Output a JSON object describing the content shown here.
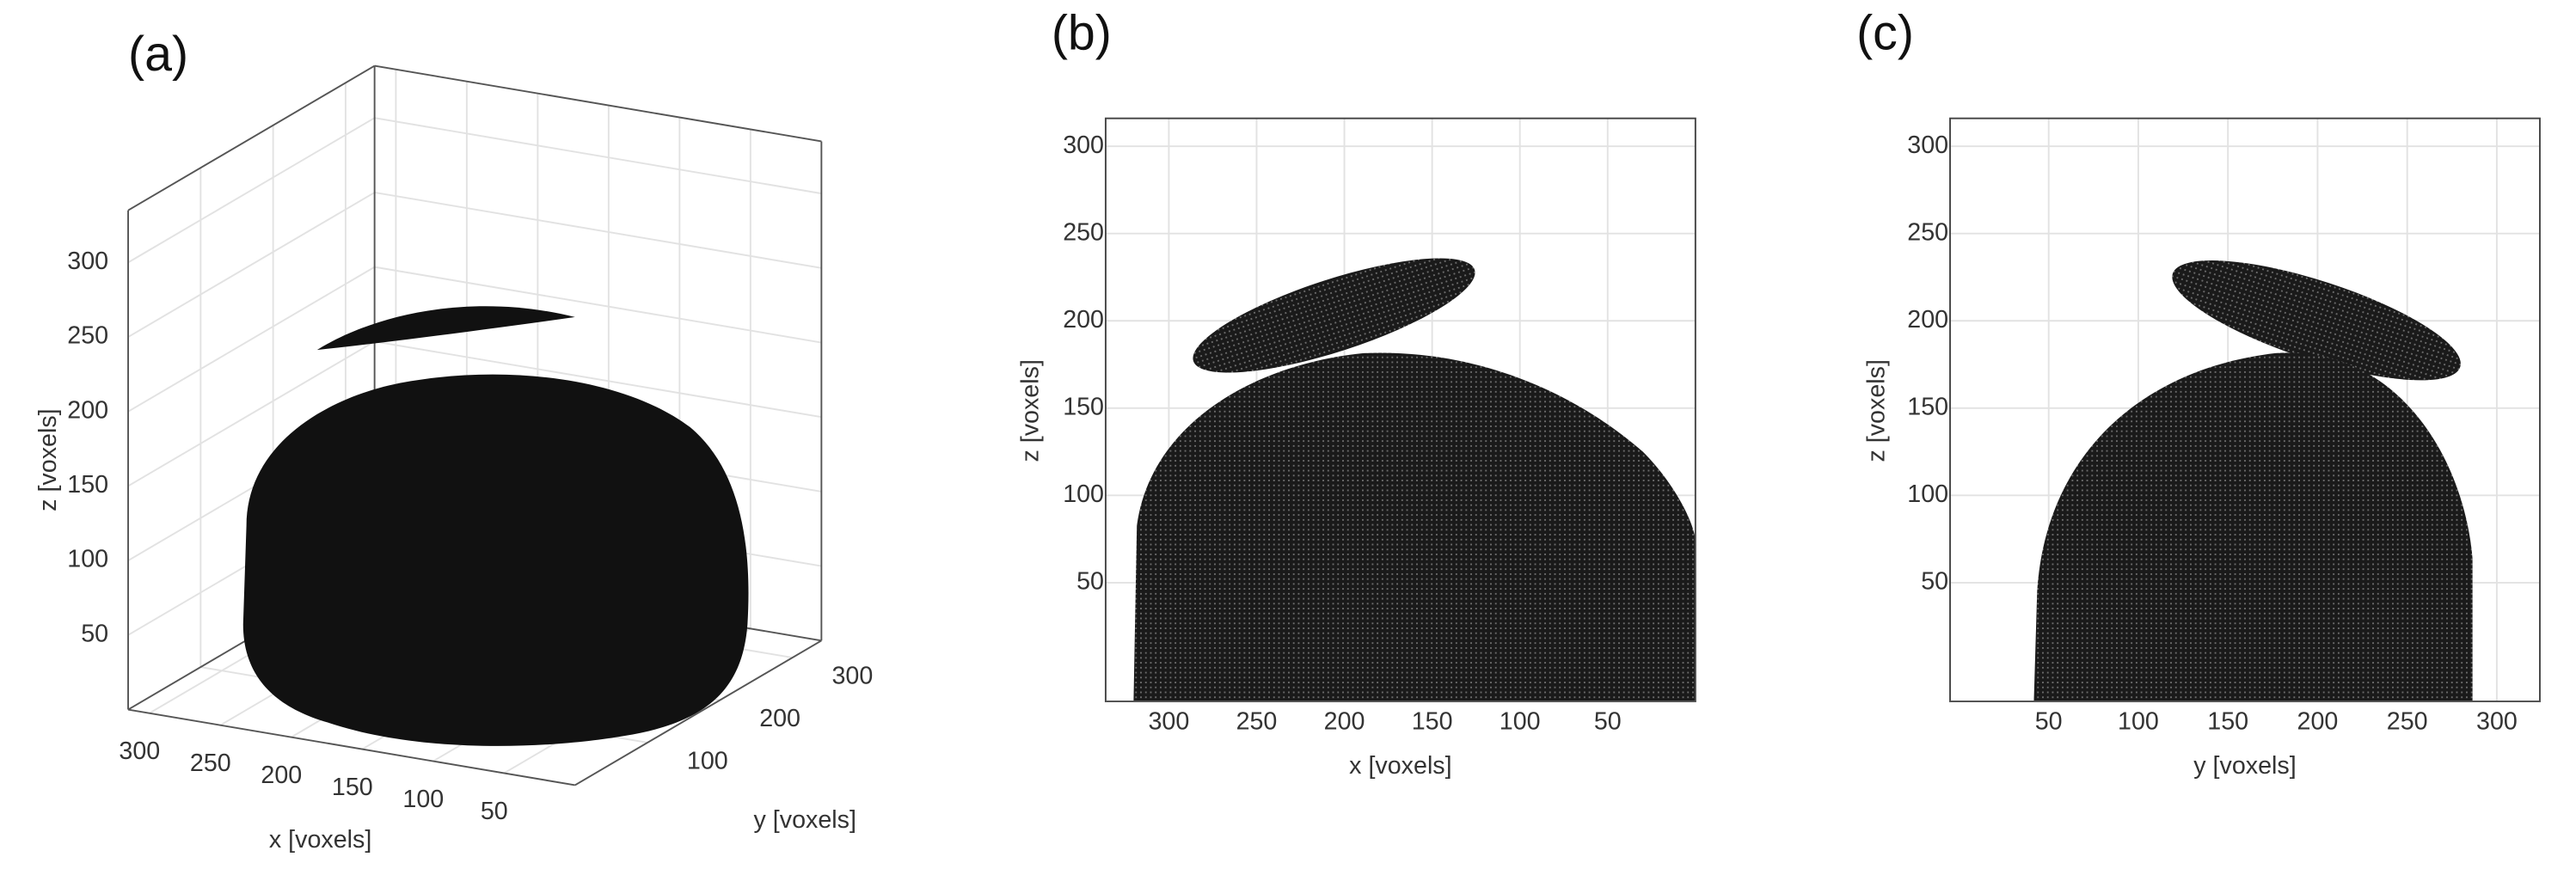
{
  "chart_data": [
    {
      "type": "voxel-3d",
      "title": "(a)",
      "xlabel": "x [voxels]",
      "ylabel": "y [voxels]",
      "zlabel": "z [voxels]",
      "xlim": [
        315,
        0
      ],
      "xticks": [
        300,
        250,
        200,
        150,
        100,
        50
      ],
      "ylim": [
        0,
        340
      ],
      "yticks": [
        100,
        200,
        300
      ],
      "zlim": [
        0,
        335
      ],
      "zticks": [
        50,
        100,
        150,
        200,
        250,
        300
      ],
      "grid": true
    },
    {
      "type": "voxel-projection",
      "title": "(b)",
      "xlabel": "x [voxels]",
      "ylabel": "z [voxels]",
      "xlim": [
        336,
        0
      ],
      "xticks": [
        300,
        250,
        200,
        150,
        100,
        50
      ],
      "ylim": [
        -18,
        316
      ],
      "yticks": [
        50,
        100,
        150,
        200,
        250,
        300
      ],
      "grid": true
    },
    {
      "type": "voxel-projection",
      "title": "(c)",
      "xlabel": "y [voxels]",
      "ylabel": "z [voxels]",
      "xlim": [
        -5,
        324
      ],
      "xticks": [
        50,
        100,
        150,
        200,
        250,
        300
      ],
      "ylim": [
        -18,
        316
      ],
      "yticks": [
        50,
        100,
        150,
        200,
        250,
        300
      ],
      "grid": true
    }
  ]
}
